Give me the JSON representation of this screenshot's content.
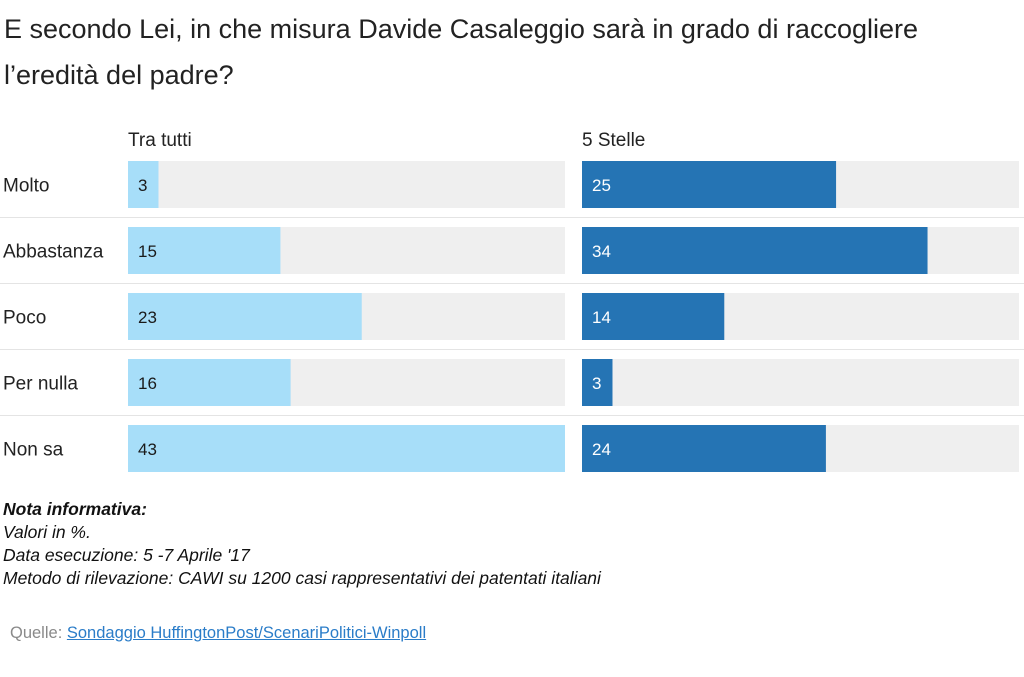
{
  "title": "E secondo Lei, in che misura Davide Casaleggio sarà in grado di raccogliere l’eredità del padre?",
  "chart_data": {
    "type": "bar",
    "orientation": "horizontal",
    "categories": [
      "Molto",
      "Abbastanza",
      "Poco",
      "Per nulla",
      "Non sa"
    ],
    "series": [
      {
        "name": "Tra tutti",
        "values": [
          3,
          15,
          23,
          16,
          43
        ],
        "color": "#a7def9"
      },
      {
        "name": "5 Stelle",
        "values": [
          25,
          34,
          14,
          3,
          24
        ],
        "color": "#2574b4"
      }
    ],
    "xlim": [
      0,
      43
    ],
    "track_color": "#efefef",
    "grid": false
  },
  "notes": {
    "heading": "Nota informativa:",
    "lines": [
      "Valori in %.",
      "Data esecuzione: 5 -7  Aprile '17",
      "Metodo di rilevazione: CAWI su 1200 casi rappresentativi dei patentati italiani"
    ]
  },
  "source": {
    "label": "Quelle:",
    "link_text": "Sondaggio HuffingtonPost/ScenariPolitici-Winpoll"
  }
}
